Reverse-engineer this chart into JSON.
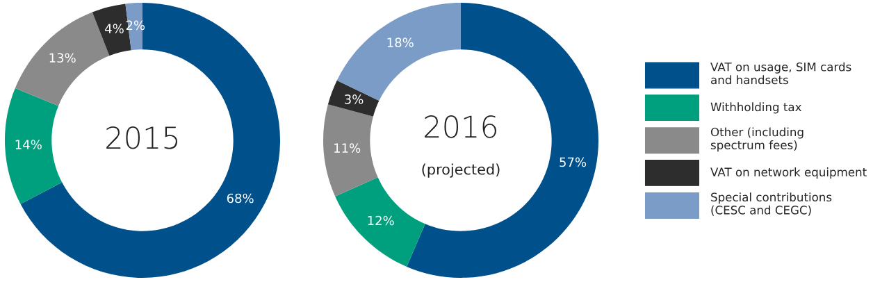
{
  "chart_data": [
    {
      "type": "donut",
      "title": "2015",
      "categories": [
        "VAT on usage, SIM cards\nand handsets",
        "Withholding tax",
        "Other (including\nspectrum fees)",
        "VAT on network equipment",
        "Special contributions\n(CESC and CEGC)"
      ],
      "values": [
        68,
        14,
        13,
        4,
        2
      ],
      "value_labels": [
        "68%",
        "14%",
        "13%",
        "4%",
        "2%"
      ],
      "colors": [
        "#00508c",
        "#00a07f",
        "#8a8a8a",
        "#2d2d2d",
        "#7a9cc6"
      ],
      "legend": "right"
    },
    {
      "type": "donut",
      "title": "2016",
      "subtitle": "(projected)",
      "categories": [
        null,
        null,
        null,
        null,
        null
      ],
      "values": [
        57,
        12,
        11,
        3,
        18
      ],
      "value_labels": [
        "57%",
        "12%",
        "11%",
        "3%",
        "18%"
      ],
      "colors": [
        "#00508c",
        "#00a07f",
        "#8a8a8a",
        "#2d2d2d",
        "#7a9cc6"
      ]
    }
  ]
}
